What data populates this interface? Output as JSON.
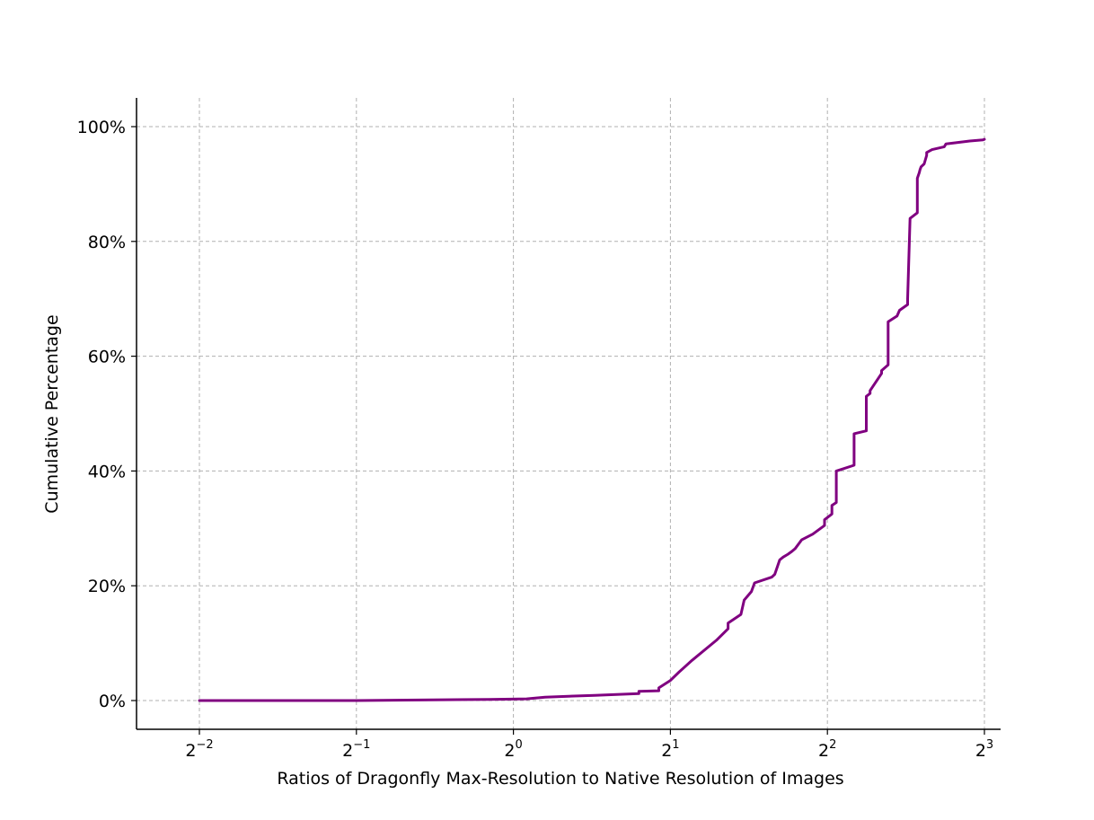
{
  "chart_data": {
    "type": "line",
    "title": "",
    "xlabel": "Ratios of Dragonfly Max-Resolution to Native Resolution of Images",
    "ylabel": "Cumulative Percentage",
    "xscale": "log2",
    "xlim": [
      0.2,
      8
    ],
    "ylim": [
      -5,
      105
    ],
    "grid": true,
    "legend": "none",
    "line_color": "#800080",
    "xticks": [
      {
        "value": 0.25,
        "base": "2",
        "exp": "−2"
      },
      {
        "value": 0.5,
        "base": "2",
        "exp": "−1"
      },
      {
        "value": 1,
        "base": "2",
        "exp": "0"
      },
      {
        "value": 2,
        "base": "2",
        "exp": "1"
      },
      {
        "value": 4,
        "base": "2",
        "exp": "2"
      },
      {
        "value": 8,
        "base": "2",
        "exp": "3"
      }
    ],
    "yticks": [
      {
        "value": 0,
        "label": "0%"
      },
      {
        "value": 20,
        "label": "20%"
      },
      {
        "value": 40,
        "label": "40%"
      },
      {
        "value": 60,
        "label": "60%"
      },
      {
        "value": 80,
        "label": "80%"
      },
      {
        "value": 100,
        "label": "100%"
      }
    ],
    "series": [
      {
        "x": [
          0.25,
          0.5,
          0.9,
          1.06,
          1.15,
          1.43,
          1.74,
          1.74,
          1.9,
          1.9,
          2.0,
          2.08,
          2.2,
          2.45,
          2.58,
          2.58,
          2.73,
          2.77,
          2.86,
          2.9,
          3.13,
          3.17,
          3.24,
          3.29,
          3.36,
          3.42,
          3.47,
          3.57,
          3.75,
          3.95,
          3.95,
          4.08,
          4.08,
          4.16,
          4.16,
          4.5,
          4.5,
          4.75,
          4.75,
          4.83,
          4.83,
          5.08,
          5.08,
          5.23,
          5.23,
          5.44,
          5.5,
          5.7,
          5.7,
          5.76,
          5.95,
          5.95,
          6.0,
          6.02,
          6.05,
          6.13,
          6.2,
          6.2,
          6.35,
          6.7,
          6.75,
          7.5,
          7.95,
          8.0
        ],
        "y": [
          0,
          0,
          0.2,
          0.3,
          0.6,
          0.9,
          1.2,
          1.6,
          1.7,
          2.2,
          3.5,
          5,
          7,
          10.5,
          12.5,
          13.5,
          15,
          17.5,
          19,
          20.5,
          21.5,
          22,
          24.5,
          25,
          25.5,
          26,
          26.5,
          28,
          29,
          30.5,
          31.5,
          32.5,
          34,
          34.5,
          40,
          41,
          46.5,
          47,
          53,
          53.5,
          54,
          57,
          57.5,
          58.5,
          66,
          67,
          68,
          69,
          70,
          84,
          85,
          91,
          92,
          92.5,
          93,
          93.5,
          95,
          95.5,
          96,
          96.5,
          97,
          97.5,
          97.7,
          97.8
        ]
      }
    ]
  }
}
